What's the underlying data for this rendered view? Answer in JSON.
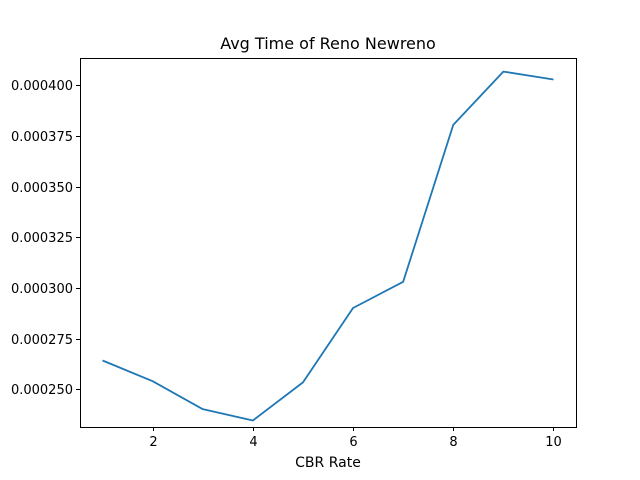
{
  "chart_data": {
    "type": "line",
    "title": "Avg Time of Reno Newreno",
    "xlabel": "CBR Rate",
    "ylabel": "",
    "xlim": [
      0.55,
      10.45
    ],
    "ylim": [
      0.0002315,
      0.0004135
    ],
    "xticks": [
      2,
      4,
      6,
      8,
      10
    ],
    "xtick_labels": [
      "2",
      "4",
      "6",
      "8",
      "10"
    ],
    "yticks": [
      0.00025,
      0.000275,
      0.0003,
      0.000325,
      0.00035,
      0.000375,
      0.0004
    ],
    "ytick_labels": [
      "0.000250",
      "0.000275",
      "0.000300",
      "0.000325",
      "0.000350",
      "0.000375",
      "0.000400"
    ],
    "grid": false,
    "legend": "none",
    "series": [
      {
        "color": "#1f77b4",
        "x": [
          1,
          2,
          3,
          4,
          5,
          6,
          7,
          8,
          9,
          10
        ],
        "y": [
          0.0002643,
          0.0002541,
          0.0002403,
          0.0002347,
          0.0002535,
          0.0002902,
          0.0003031,
          0.0003805,
          0.0004068,
          0.0004029
        ]
      }
    ]
  }
}
